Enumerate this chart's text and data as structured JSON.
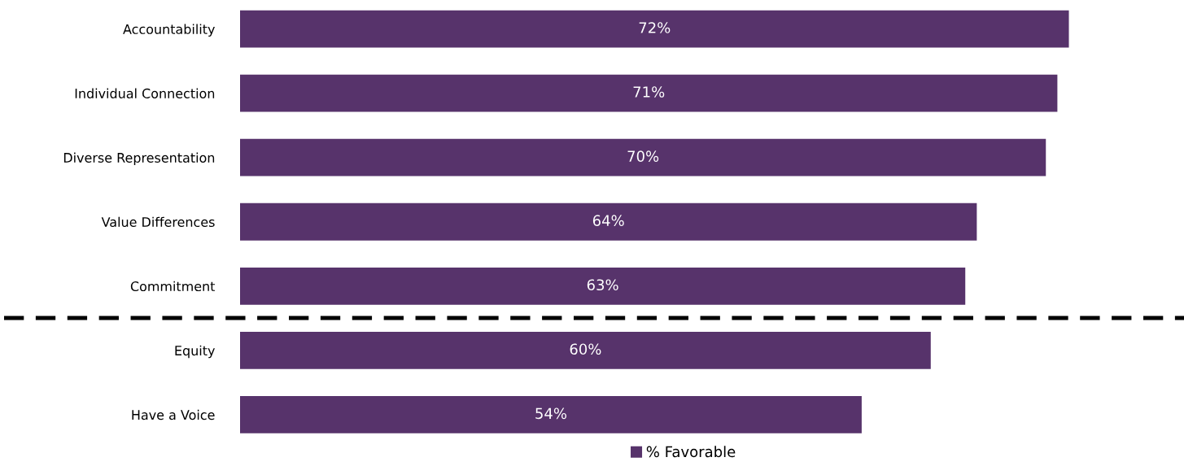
{
  "chart_data": {
    "type": "bar",
    "orientation": "horizontal",
    "categories": [
      "Accountability",
      "Individual Connection",
      "Diverse Representation",
      "Value Differences",
      "Commitment",
      "Equity",
      "Have a Voice"
    ],
    "series": [
      {
        "name": "% Favorable",
        "color": "#57336b",
        "values": [
          72,
          71,
          70,
          64,
          63,
          60,
          54
        ],
        "value_labels": [
          "72%",
          "71%",
          "70%",
          "64%",
          "63%",
          "60%",
          "54%"
        ]
      }
    ],
    "xlim": [
      0,
      82
    ],
    "tick_labels": "y",
    "grid": false,
    "legend": "bottom"
  }
}
